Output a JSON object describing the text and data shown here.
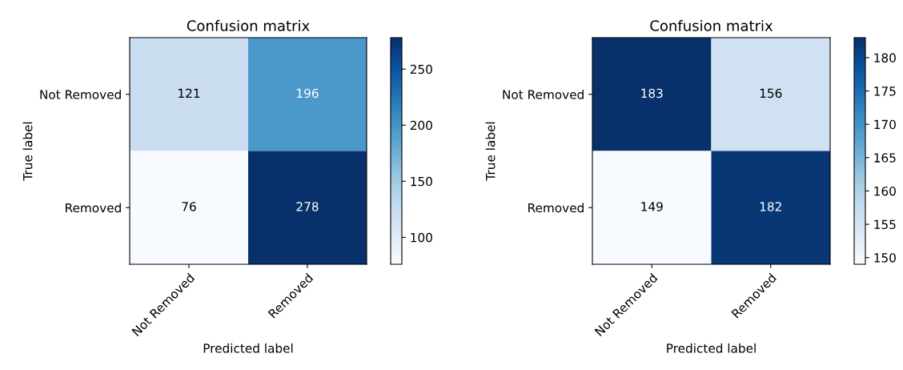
{
  "chart_data": [
    {
      "type": "heatmap",
      "title": "Confusion matrix",
      "xlabel": "Predicted label",
      "ylabel": "True label",
      "categories": [
        "Not Removed",
        "Removed"
      ],
      "y_categories": [
        "Not Removed",
        "Removed"
      ],
      "cells": [
        [
          121,
          196
        ],
        [
          76,
          278
        ]
      ],
      "clim": [
        76,
        278
      ],
      "cticks": [
        100,
        150,
        200,
        250
      ],
      "data_labels": true
    },
    {
      "type": "heatmap",
      "title": "Confusion matrix",
      "xlabel": "Predicted label",
      "ylabel": "True label",
      "categories": [
        "Not Removed",
        "Removed"
      ],
      "y_categories": [
        "Not Removed",
        "Removed"
      ],
      "cells": [
        [
          183,
          156
        ],
        [
          149,
          182
        ]
      ],
      "clim": [
        149,
        183
      ],
      "cticks": [
        150,
        155,
        160,
        165,
        170,
        175,
        180
      ],
      "data_labels": true
    }
  ]
}
